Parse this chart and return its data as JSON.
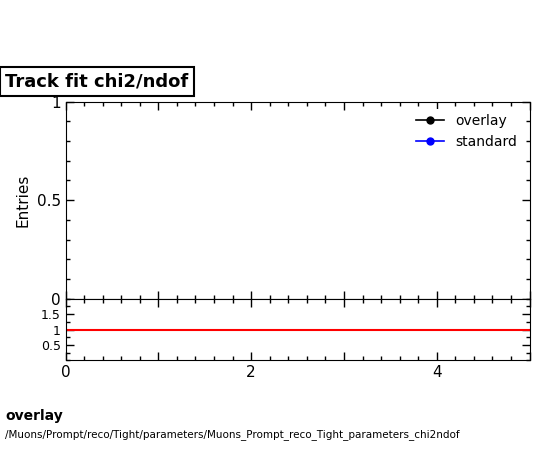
{
  "title": "Track fit chi2/ndof",
  "ylabel_main": "Entries",
  "xlim": [
    0,
    5
  ],
  "ylim_main": [
    0,
    1
  ],
  "ylim_ratio": [
    0,
    2
  ],
  "yticks_main": [
    0,
    0.5,
    1
  ],
  "yticks_ratio": [
    0.5,
    1,
    1.5
  ],
  "xticks_major": [
    0,
    1,
    2,
    3,
    4,
    5
  ],
  "overlay_color": "#000000",
  "standard_color": "#0000ff",
  "ratio_line_color": "#ff0000",
  "ratio_line_y": 1.0,
  "legend_overlay": "overlay",
  "legend_standard": "standard",
  "footer_line1": "overlay",
  "footer_line2": "/Muons/Prompt/reco/Tight/parameters/Muons_Prompt_reco_Tight_parameters_chi2ndof",
  "title_box_facecolor": "#ffffff",
  "title_box_edgecolor": "#000000"
}
